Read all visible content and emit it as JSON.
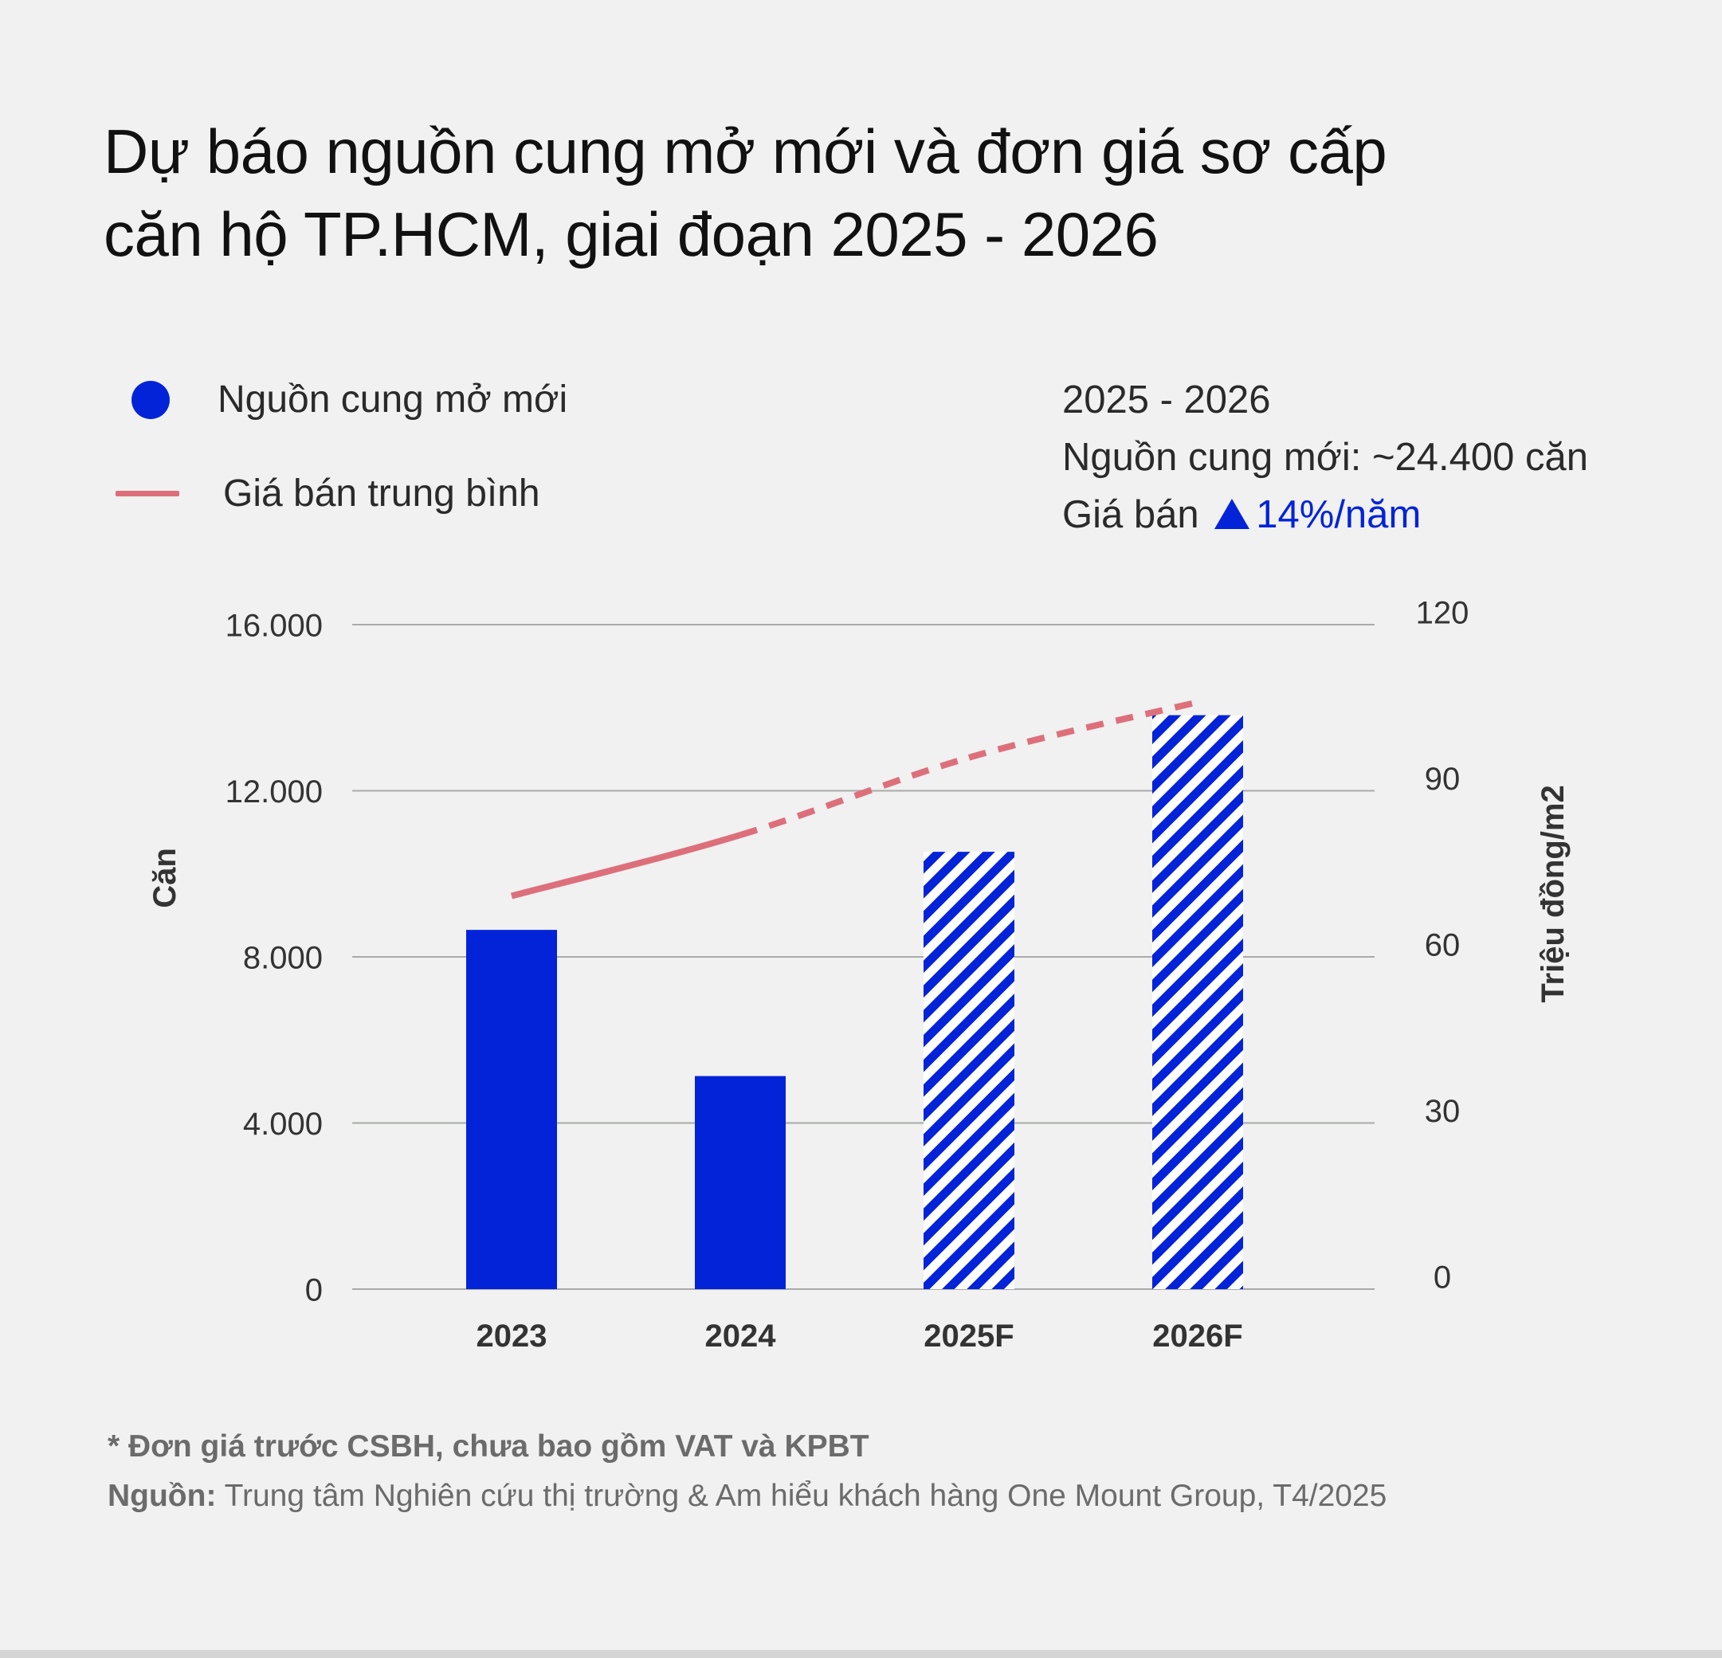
{
  "title_line1": "Dự báo nguồn cung mở mới và đơn giá sơ cấp",
  "title_line2": "căn hộ TP.HCM, giai đoạn 2025 - 2026",
  "legend": {
    "supply_label": "Nguồn cung mở mới",
    "price_label": "Giá bán trung bình"
  },
  "summary": {
    "period": "2025 - 2026",
    "supply_text": "Nguồn cung mới: ~24.400 căn",
    "price_prefix": "Giá bán",
    "price_change": "14%/năm"
  },
  "notes": {
    "footnote": "* Đơn giá trước CSBH, chưa bao gồm VAT và KPBT",
    "source_label": "Nguồn:",
    "source_text": " Trung tâm Nghiên cứu thị trường & Am hiểu khách hàng One Mount Group, T4/2025"
  },
  "colors": {
    "bar": "#0323d8",
    "line": "#dd6f7b",
    "grid": "#a9aaa9"
  },
  "chart_data": {
    "type": "bar",
    "categories": [
      "2023",
      "2024",
      "2025F",
      "2026F"
    ],
    "series": [
      {
        "values": [
          8650,
          5130,
          10530,
          13820
        ],
        "axis": "left",
        "pattern": [
          "solid",
          "solid",
          "hatched",
          "hatched"
        ]
      },
      {
        "type": "line",
        "values": [
          71,
          82,
          96,
          106
        ],
        "axis": "right",
        "style": [
          "solid",
          "dashed",
          "dashed"
        ]
      }
    ],
    "ylabel": "Căn",
    "y2label": "Triệu đồng/m2",
    "ylim": [
      0,
      16000
    ],
    "y2lim": [
      0,
      120
    ],
    "yticks": [
      "0",
      "4.000",
      "8.000",
      "12.000",
      "16.000"
    ],
    "y2ticks": [
      "0",
      "30",
      "60",
      "90",
      "120"
    ],
    "grid": true
  }
}
